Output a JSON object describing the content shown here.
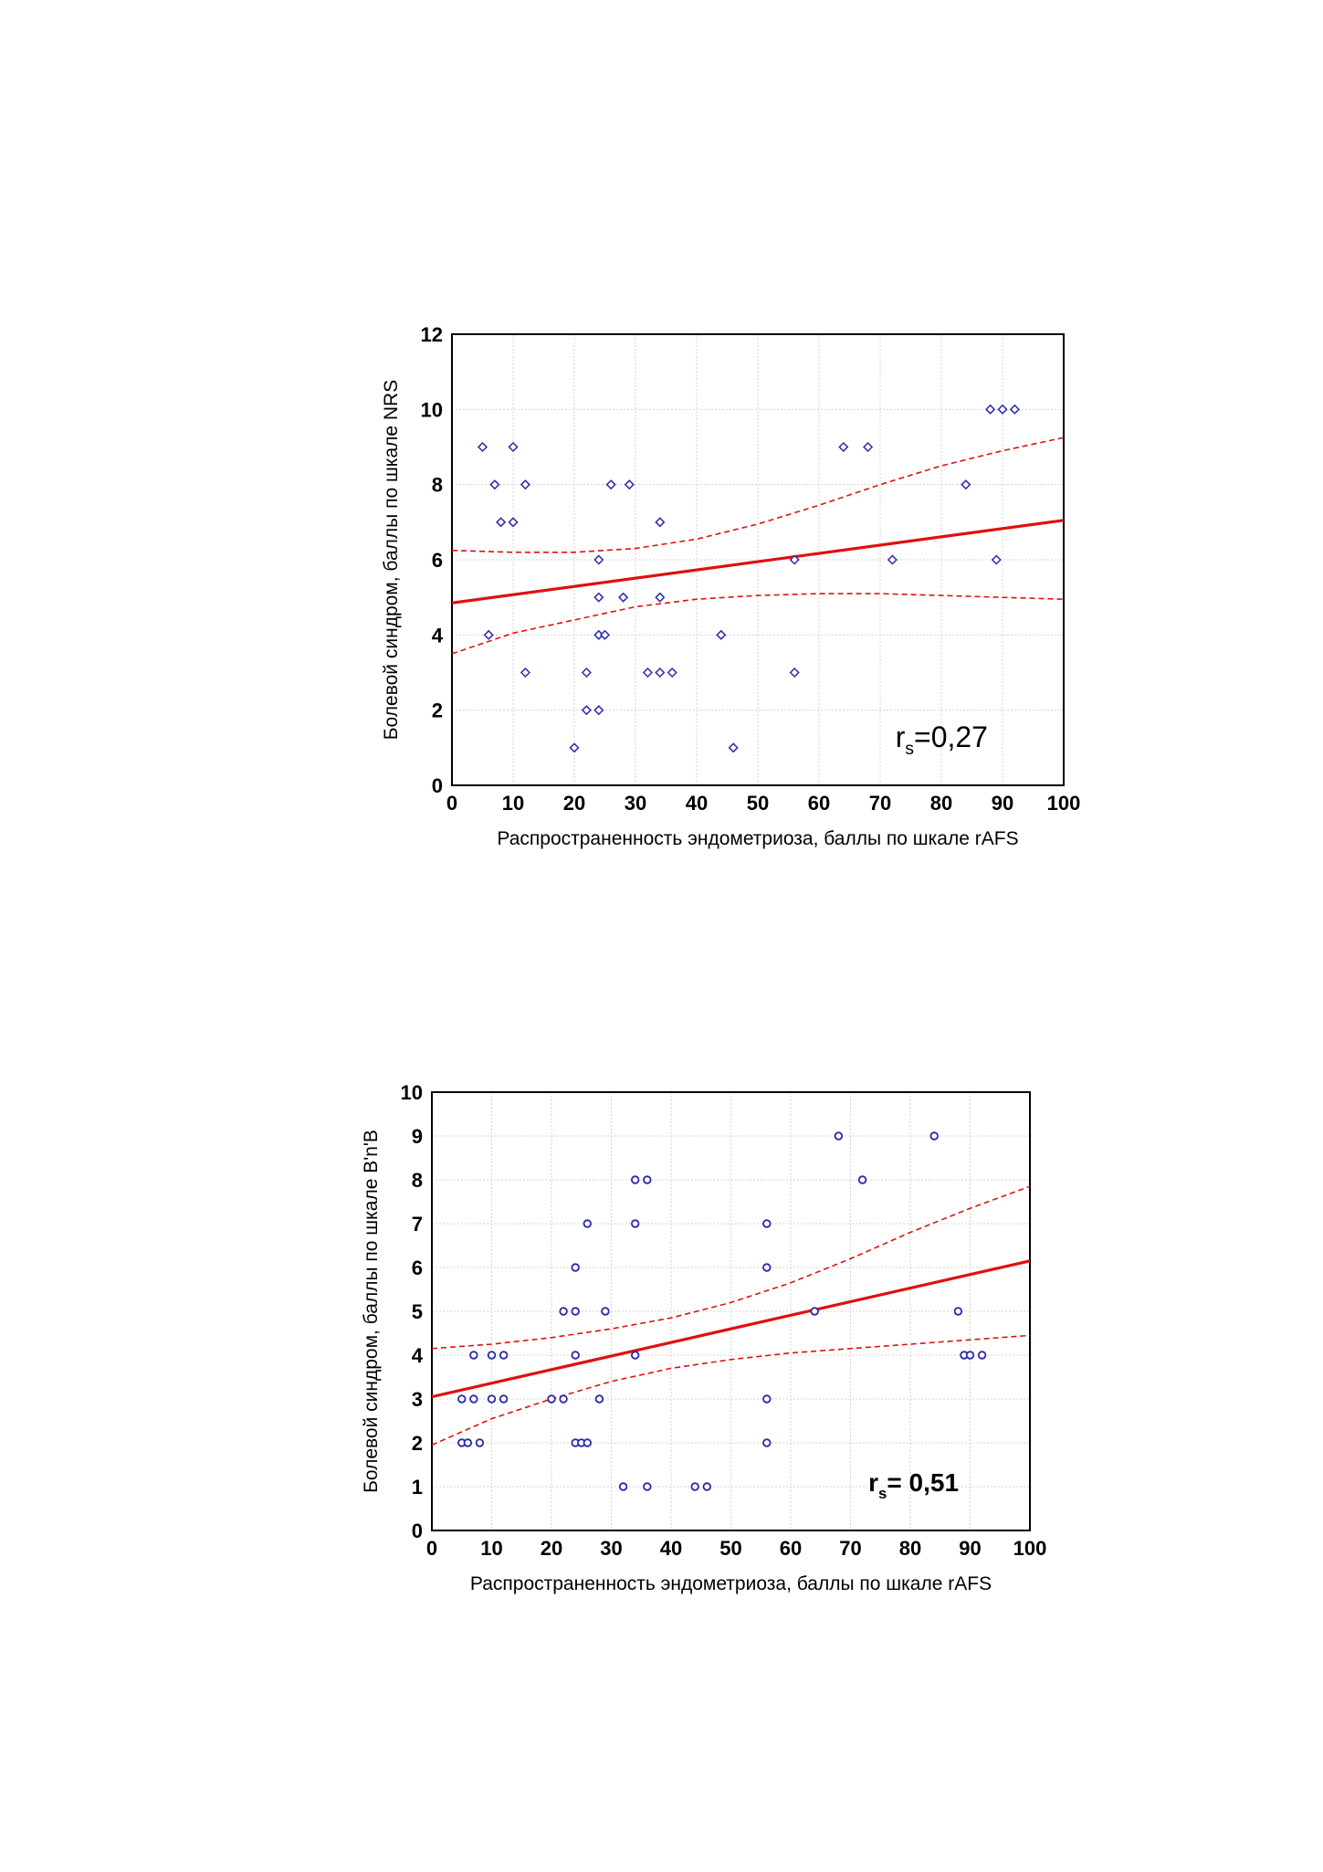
{
  "chart_data": [
    {
      "type": "scatter",
      "xlabel": "Распространенность эндометриоза, баллы по шкале rAFS",
      "ylabel": "Болевой синдром, баллы по шкале NRS",
      "xlim": [
        0,
        100
      ],
      "ylim": [
        0,
        12
      ],
      "xticks": [
        "0",
        "10",
        "20",
        "30",
        "40",
        "50",
        "60",
        "70",
        "80",
        "90",
        "100"
      ],
      "yticks": [
        "0",
        "2",
        "4",
        "6",
        "8",
        "10",
        "12"
      ],
      "grid": true,
      "marker": "diamond",
      "colors": {
        "points": "#2a2aa8",
        "fit": "#e01010",
        "ci": "#e01010"
      },
      "annotation": {
        "r": "r",
        "sub": "s",
        "value": "=0,27"
      },
      "points": [
        [
          5,
          9
        ],
        [
          6,
          4
        ],
        [
          7,
          8
        ],
        [
          8,
          7
        ],
        [
          10,
          9
        ],
        [
          10,
          7
        ],
        [
          12,
          8
        ],
        [
          12,
          3
        ],
        [
          20,
          1
        ],
        [
          22,
          3
        ],
        [
          22,
          2
        ],
        [
          24,
          6
        ],
        [
          24,
          5
        ],
        [
          24,
          4
        ],
        [
          24,
          2
        ],
        [
          25,
          4
        ],
        [
          26,
          8
        ],
        [
          28,
          5
        ],
        [
          29,
          8
        ],
        [
          32,
          3
        ],
        [
          34,
          7
        ],
        [
          34,
          5
        ],
        [
          34,
          3
        ],
        [
          36,
          3
        ],
        [
          44,
          4
        ],
        [
          46,
          1
        ],
        [
          56,
          6
        ],
        [
          56,
          3
        ],
        [
          64,
          9
        ],
        [
          68,
          9
        ],
        [
          72,
          6
        ],
        [
          84,
          8
        ],
        [
          88,
          10
        ],
        [
          89,
          6
        ],
        [
          90,
          10
        ],
        [
          92,
          10
        ]
      ],
      "fit_line": [
        [
          0,
          4.85
        ],
        [
          100,
          7.05
        ]
      ],
      "ci_upper": [
        [
          0,
          6.25
        ],
        [
          10,
          6.2
        ],
        [
          20,
          6.2
        ],
        [
          30,
          6.3
        ],
        [
          40,
          6.55
        ],
        [
          50,
          6.95
        ],
        [
          60,
          7.45
        ],
        [
          70,
          8.0
        ],
        [
          80,
          8.5
        ],
        [
          90,
          8.9
        ],
        [
          100,
          9.25
        ]
      ],
      "ci_lower": [
        [
          0,
          3.5
        ],
        [
          10,
          4.05
        ],
        [
          20,
          4.4
        ],
        [
          30,
          4.75
        ],
        [
          40,
          4.95
        ],
        [
          50,
          5.05
        ],
        [
          60,
          5.1
        ],
        [
          70,
          5.1
        ],
        [
          80,
          5.05
        ],
        [
          90,
          5.0
        ],
        [
          100,
          4.95
        ]
      ]
    },
    {
      "type": "scatter",
      "xlabel": "Распространенность эндометриоза, баллы по шкале rAFS",
      "ylabel": "Болевой синдром, баллы по шкале В'n'В",
      "xlim": [
        0,
        100
      ],
      "ylim": [
        0,
        10
      ],
      "xticks": [
        "0",
        "10",
        "20",
        "30",
        "40",
        "50",
        "60",
        "70",
        "80",
        "90",
        "100"
      ],
      "yticks": [
        "0",
        "1",
        "2",
        "3",
        "4",
        "5",
        "6",
        "7",
        "8",
        "9",
        "10"
      ],
      "grid": true,
      "marker": "circle",
      "colors": {
        "points": "#2a2aa8",
        "fit": "#e01010",
        "ci": "#e01010"
      },
      "annotation": {
        "r": "r",
        "sub": "s",
        "value": "= 0,51"
      },
      "points": [
        [
          5,
          3
        ],
        [
          5,
          2
        ],
        [
          6,
          2
        ],
        [
          7,
          4
        ],
        [
          7,
          3
        ],
        [
          8,
          2
        ],
        [
          10,
          4
        ],
        [
          10,
          3
        ],
        [
          12,
          4
        ],
        [
          12,
          3
        ],
        [
          20,
          3
        ],
        [
          22,
          5
        ],
        [
          22,
          3
        ],
        [
          24,
          6
        ],
        [
          24,
          5
        ],
        [
          24,
          4
        ],
        [
          24,
          2
        ],
        [
          25,
          2
        ],
        [
          26,
          7
        ],
        [
          26,
          2
        ],
        [
          28,
          3
        ],
        [
          29,
          5
        ],
        [
          32,
          1
        ],
        [
          34,
          8
        ],
        [
          34,
          7
        ],
        [
          34,
          4
        ],
        [
          36,
          8
        ],
        [
          36,
          1
        ],
        [
          44,
          1
        ],
        [
          46,
          1
        ],
        [
          56,
          7
        ],
        [
          56,
          6
        ],
        [
          56,
          3
        ],
        [
          56,
          2
        ],
        [
          64,
          5
        ],
        [
          68,
          9
        ],
        [
          72,
          8
        ],
        [
          84,
          9
        ],
        [
          88,
          5
        ],
        [
          89,
          4
        ],
        [
          90,
          4
        ],
        [
          92,
          4
        ]
      ],
      "fit_line": [
        [
          0,
          3.05
        ],
        [
          100,
          6.15
        ]
      ],
      "ci_upper": [
        [
          0,
          4.15
        ],
        [
          10,
          4.25
        ],
        [
          20,
          4.4
        ],
        [
          30,
          4.6
        ],
        [
          40,
          4.85
        ],
        [
          50,
          5.2
        ],
        [
          60,
          5.65
        ],
        [
          70,
          6.2
        ],
        [
          80,
          6.8
        ],
        [
          90,
          7.35
        ],
        [
          100,
          7.85
        ]
      ],
      "ci_lower": [
        [
          0,
          1.95
        ],
        [
          10,
          2.55
        ],
        [
          20,
          3.0
        ],
        [
          30,
          3.4
        ],
        [
          40,
          3.7
        ],
        [
          50,
          3.9
        ],
        [
          60,
          4.05
        ],
        [
          70,
          4.15
        ],
        [
          80,
          4.25
        ],
        [
          90,
          4.35
        ],
        [
          100,
          4.45
        ]
      ]
    }
  ]
}
